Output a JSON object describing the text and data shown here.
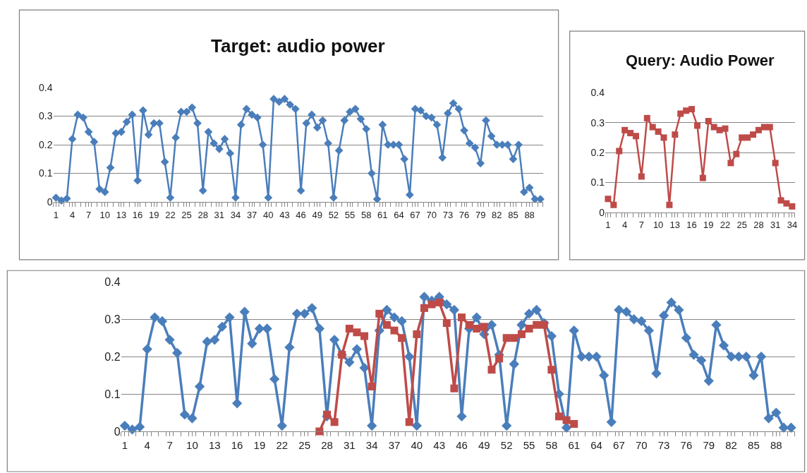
{
  "chart_data": [
    {
      "type": "line",
      "title": "Target: audio power",
      "categories": [
        "1",
        null,
        null,
        "4",
        null,
        null,
        "7",
        null,
        null,
        "10",
        null,
        null,
        "13",
        null,
        null,
        "16",
        null,
        null,
        "19",
        null,
        null,
        "22",
        null,
        null,
        "25",
        null,
        null,
        "28",
        null,
        null,
        "31",
        null,
        null,
        "34",
        null,
        null,
        "37",
        null,
        null,
        "40",
        null,
        null,
        "43",
        null,
        null,
        "46",
        null,
        null,
        "49",
        null,
        null,
        "52",
        null,
        null,
        "55",
        null,
        null,
        "58",
        null,
        null,
        "61",
        null,
        null,
        "64",
        null,
        null,
        "67",
        null,
        null,
        "70",
        null,
        null,
        "73",
        null,
        null,
        "76",
        null,
        null,
        "79",
        null,
        null,
        "82",
        null,
        null,
        "85",
        null,
        null,
        "88",
        null,
        null
      ],
      "series": [
        {
          "color": "#4a7ebb",
          "marker": "diamond",
          "values": [
            0.015,
            0.005,
            0.012,
            0.22,
            0.305,
            0.295,
            0.245,
            0.21,
            0.045,
            0.035,
            0.12,
            0.24,
            0.245,
            0.28,
            0.305,
            0.075,
            0.32,
            0.235,
            0.275,
            0.275,
            0.14,
            0.015,
            0.225,
            0.315,
            0.315,
            0.33,
            0.275,
            0.04,
            0.245,
            0.205,
            0.185,
            0.22,
            0.17,
            0.015,
            0.27,
            0.325,
            0.305,
            0.295,
            0.2,
            0.015,
            0.36,
            0.35,
            0.36,
            0.34,
            0.325,
            0.04,
            0.275,
            0.305,
            0.26,
            0.285,
            0.205,
            0.015,
            0.18,
            0.285,
            0.315,
            0.325,
            0.29,
            0.255,
            0.1,
            0.01,
            0.27,
            0.2,
            0.2,
            0.2,
            0.15,
            0.025,
            0.325,
            0.32,
            0.3,
            0.295,
            0.27,
            0.155,
            0.31,
            0.345,
            0.325,
            0.25,
            0.205,
            0.19,
            0.135,
            0.285,
            0.23,
            0.2,
            0.2,
            0.2,
            0.15,
            0.2,
            0.035,
            0.05,
            0.01,
            0.01
          ]
        }
      ],
      "ylim": [
        0,
        0.4
      ],
      "yticks": [
        0,
        0.1,
        0.2,
        0.3,
        0.4
      ],
      "grid": "y"
    },
    {
      "type": "line",
      "title": "Query: Audio Power",
      "categories": [
        "1",
        null,
        null,
        "4",
        null,
        null,
        "7",
        null,
        null,
        "10",
        null,
        null,
        "13",
        null,
        null,
        "16",
        null,
        null,
        "19",
        null,
        null,
        "22",
        null,
        null,
        "25",
        null,
        null,
        "28",
        null,
        null,
        "31",
        null,
        null,
        "34"
      ],
      "series": [
        {
          "color": "#be4b48",
          "marker": "square",
          "values": [
            0.045,
            0.025,
            0.205,
            0.275,
            0.265,
            0.255,
            0.12,
            0.315,
            0.285,
            0.27,
            0.25,
            0.025,
            0.26,
            0.33,
            0.34,
            0.345,
            0.29,
            0.115,
            0.305,
            0.285,
            0.275,
            0.28,
            0.165,
            0.195,
            0.25,
            0.25,
            0.26,
            0.275,
            0.285,
            0.285,
            0.165,
            0.04,
            0.03,
            0.02
          ]
        }
      ],
      "ylim": [
        0,
        0.4
      ],
      "yticks": [
        0,
        0.1,
        0.2,
        0.3,
        0.4
      ],
      "grid": "y"
    },
    {
      "type": "line",
      "categories": [
        "1",
        null,
        null,
        "4",
        null,
        null,
        "7",
        null,
        null,
        "10",
        null,
        null,
        "13",
        null,
        null,
        "16",
        null,
        null,
        "19",
        null,
        null,
        "22",
        null,
        null,
        "25",
        null,
        null,
        "28",
        null,
        null,
        "31",
        null,
        null,
        "34",
        null,
        null,
        "37",
        null,
        null,
        "40",
        null,
        null,
        "43",
        null,
        null,
        "46",
        null,
        null,
        "49",
        null,
        null,
        "52",
        null,
        null,
        "55",
        null,
        null,
        "58",
        null,
        null,
        "61",
        null,
        null,
        "64",
        null,
        null,
        "67",
        null,
        null,
        "70",
        null,
        null,
        "73",
        null,
        null,
        "76",
        null,
        null,
        "79",
        null,
        null,
        "82",
        null,
        null,
        "85",
        null,
        null,
        "88",
        null,
        null
      ],
      "series": [
        {
          "color": "#4a7ebb",
          "marker": "diamond",
          "values": [
            0.015,
            0.005,
            0.012,
            0.22,
            0.305,
            0.295,
            0.245,
            0.21,
            0.045,
            0.035,
            0.12,
            0.24,
            0.245,
            0.28,
            0.305,
            0.075,
            0.32,
            0.235,
            0.275,
            0.275,
            0.14,
            0.015,
            0.225,
            0.315,
            0.315,
            0.33,
            0.275,
            0.04,
            0.245,
            0.205,
            0.185,
            0.22,
            0.17,
            0.015,
            0.27,
            0.325,
            0.305,
            0.295,
            0.2,
            0.015,
            0.36,
            0.35,
            0.36,
            0.34,
            0.325,
            0.04,
            0.275,
            0.305,
            0.26,
            0.285,
            0.205,
            0.015,
            0.18,
            0.285,
            0.315,
            0.325,
            0.29,
            0.255,
            0.1,
            0.01,
            0.27,
            0.2,
            0.2,
            0.2,
            0.15,
            0.025,
            0.325,
            0.32,
            0.3,
            0.295,
            0.27,
            0.155,
            0.31,
            0.345,
            0.325,
            0.25,
            0.205,
            0.19,
            0.135,
            0.285,
            0.23,
            0.2,
            0.2,
            0.2,
            0.15,
            0.2,
            0.035,
            0.05,
            0.01,
            0.01
          ]
        },
        {
          "color": "#be4b48",
          "marker": "square",
          "values": [
            null,
            null,
            null,
            null,
            null,
            null,
            null,
            null,
            null,
            null,
            null,
            null,
            null,
            null,
            null,
            null,
            null,
            null,
            null,
            null,
            null,
            null,
            null,
            null,
            null,
            null,
            0.0,
            0.045,
            0.025,
            0.205,
            0.275,
            0.265,
            0.255,
            0.12,
            0.315,
            0.285,
            0.27,
            0.25,
            0.025,
            0.26,
            0.33,
            0.34,
            0.345,
            0.29,
            0.115,
            0.305,
            0.285,
            0.275,
            0.28,
            0.165,
            0.195,
            0.25,
            0.25,
            0.26,
            0.275,
            0.285,
            0.285,
            0.165,
            0.04,
            0.03,
            0.02,
            null,
            null,
            null,
            null,
            null,
            null,
            null,
            null,
            null,
            null,
            null,
            null,
            null,
            null,
            null,
            null,
            null,
            null,
            null,
            null,
            null,
            null,
            null,
            null,
            null,
            null,
            null,
            null,
            null
          ]
        }
      ],
      "ylim": [
        0,
        0.4
      ],
      "yticks": [
        0,
        0.1,
        0.2,
        0.3,
        0.4
      ],
      "grid": "y"
    }
  ]
}
